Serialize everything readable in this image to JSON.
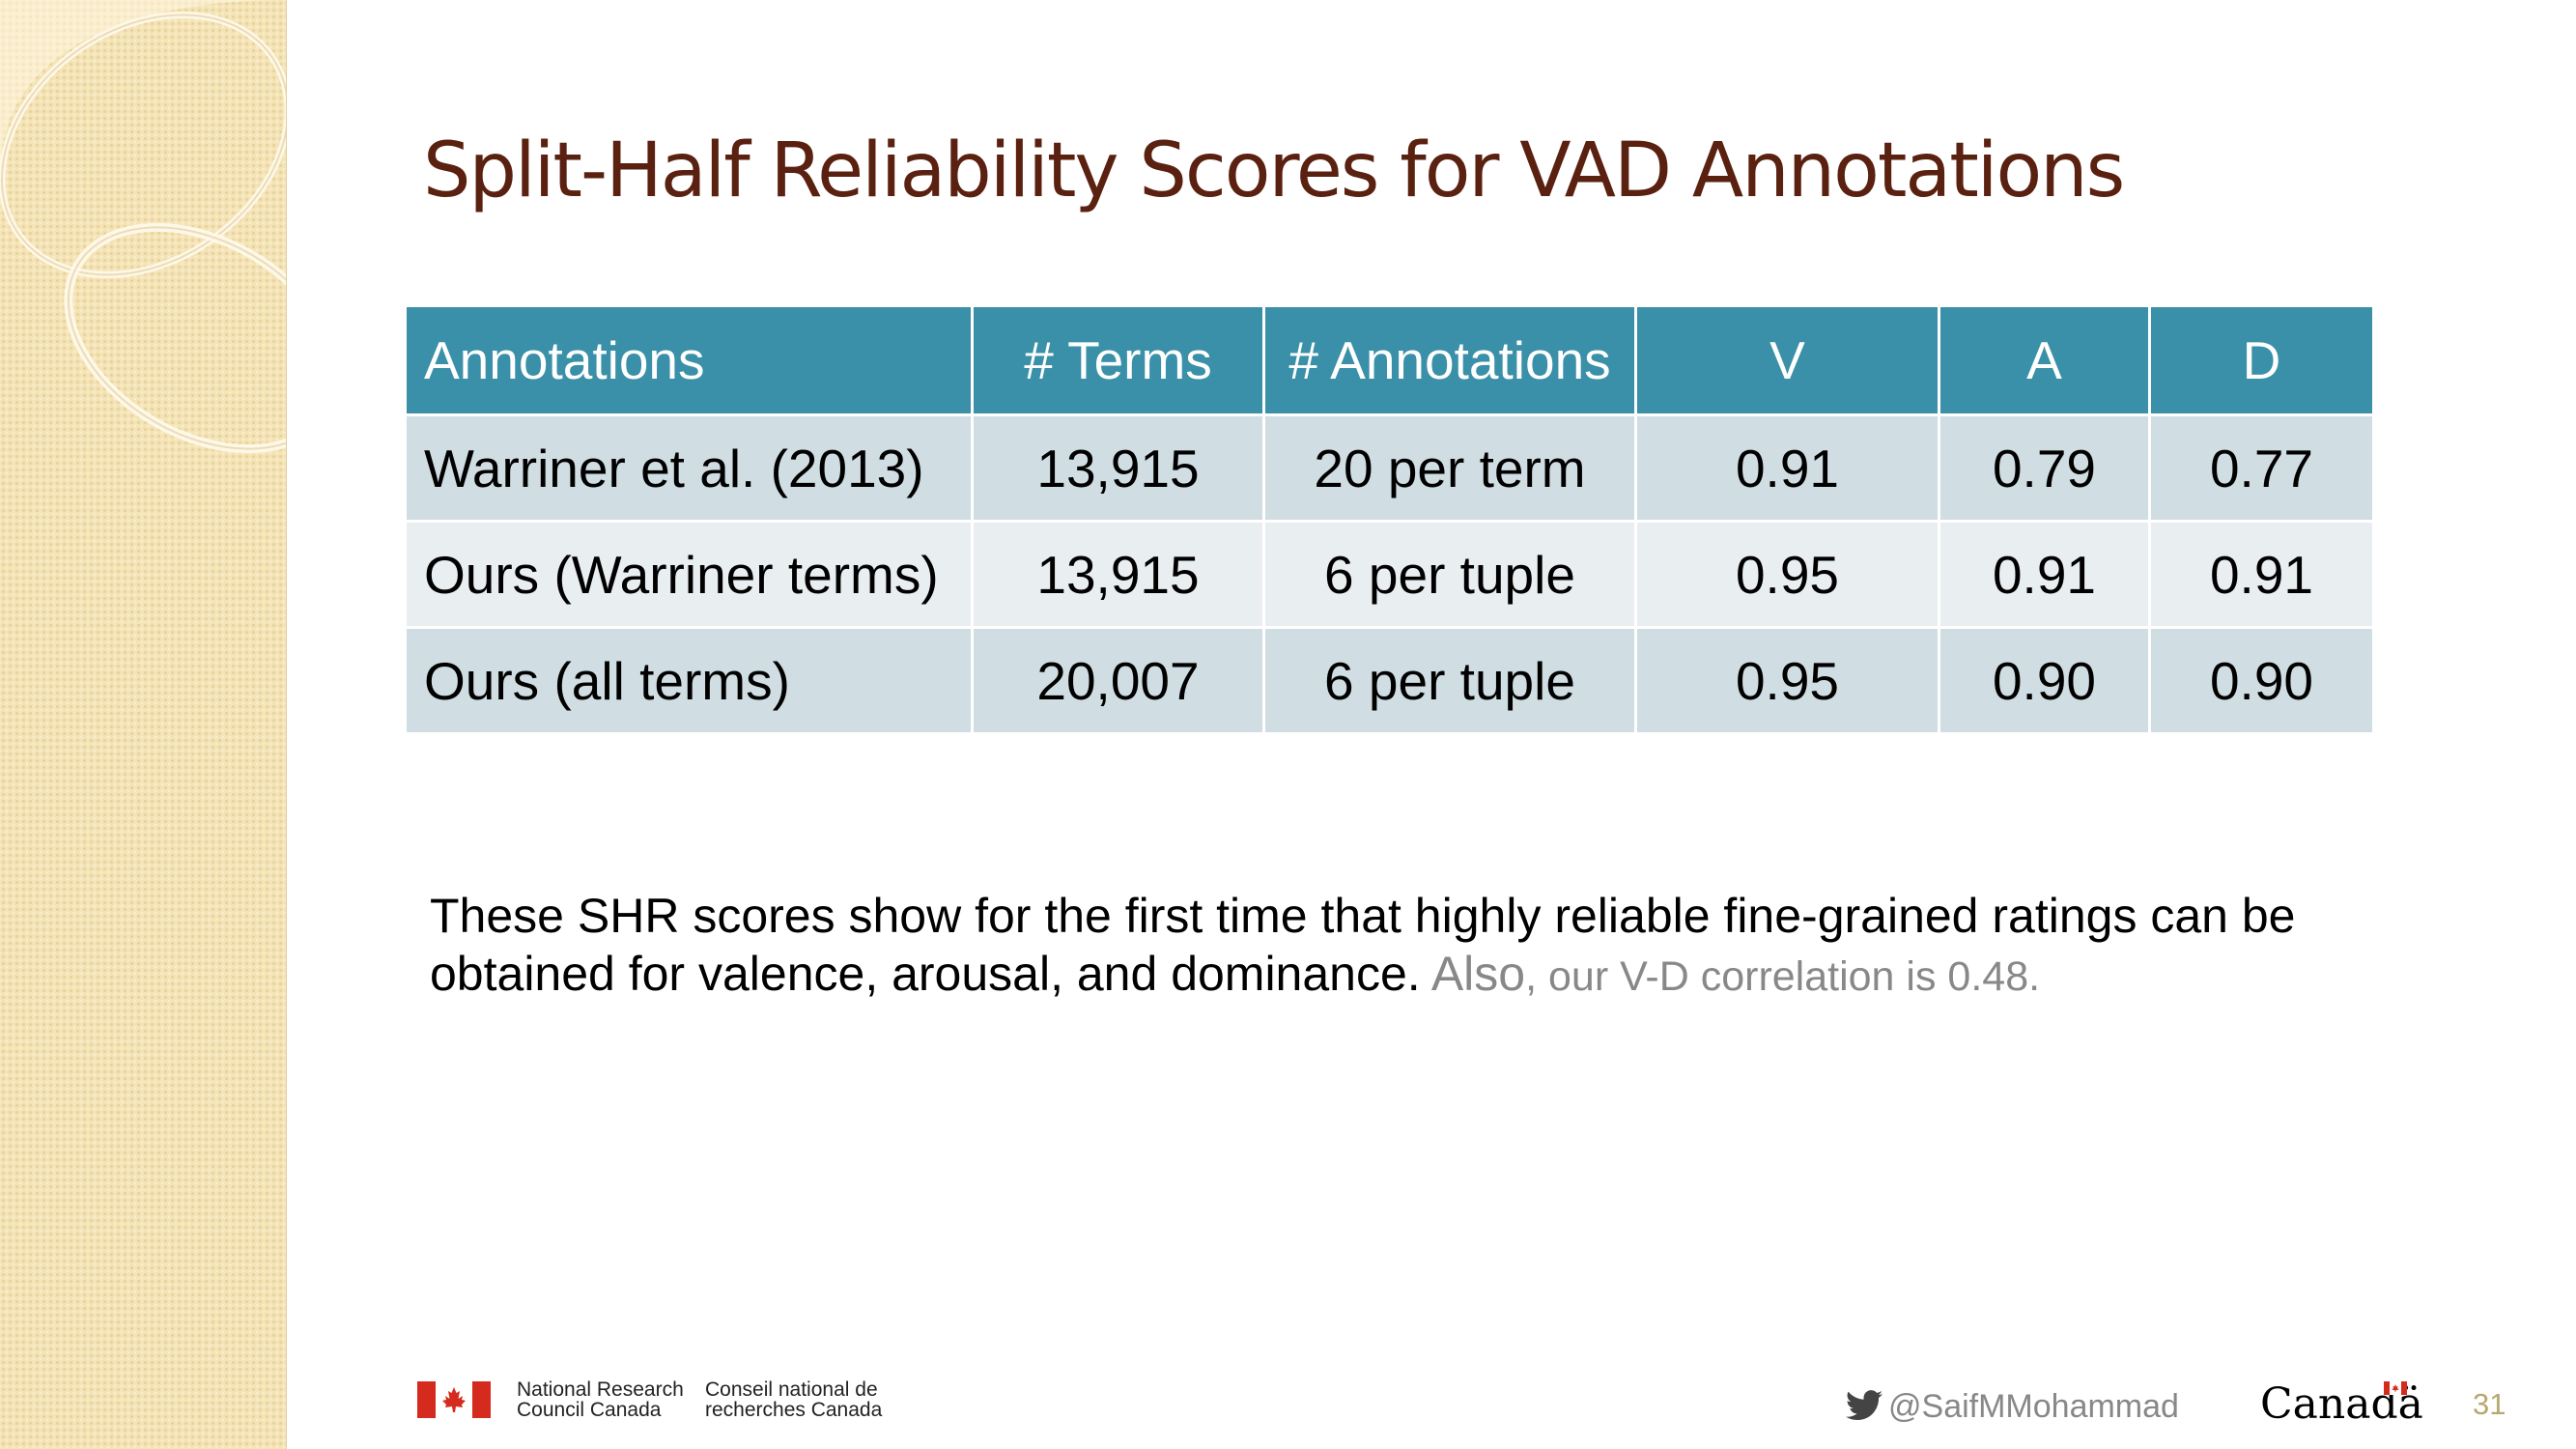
{
  "title": "Split-Half Reliability Scores for VAD Annotations",
  "table": {
    "headers": [
      "Annotations",
      "# Terms",
      "# Annotations",
      "V",
      "A",
      "D"
    ],
    "rows": [
      [
        "Warriner et al. (2013)",
        "13,915",
        "20 per term",
        "0.91",
        "0.79",
        "0.77"
      ],
      [
        "Ours (Warriner terms)",
        "13,915",
        "6 per tuple",
        "0.95",
        "0.91",
        "0.91"
      ],
      [
        "Ours (all terms)",
        "20,007",
        "6 per tuple",
        "0.95",
        "0.90",
        "0.90"
      ]
    ]
  },
  "note": {
    "main": "These SHR scores show for the first time that highly reliable fine-grained ratings can be obtained for valence, arousal, and dominance. ",
    "also": "Also",
    "tail": ", our V-D correlation is 0.48."
  },
  "footer": {
    "nrc_en_line1": "National Research",
    "nrc_en_line2": "Council Canada",
    "nrc_fr_line1": "Conseil national de",
    "nrc_fr_line2": "recherches Canada",
    "twitter_handle": "@SaifMMohammad",
    "canada_wordmark": "Canadä",
    "slide_number": "31"
  },
  "colors": {
    "title": "#5a2010",
    "header_bg": "#3a90a8",
    "row_odd": "#d0dde2",
    "row_even": "#e9eef1",
    "sidebar": "#f4e3b5"
  }
}
